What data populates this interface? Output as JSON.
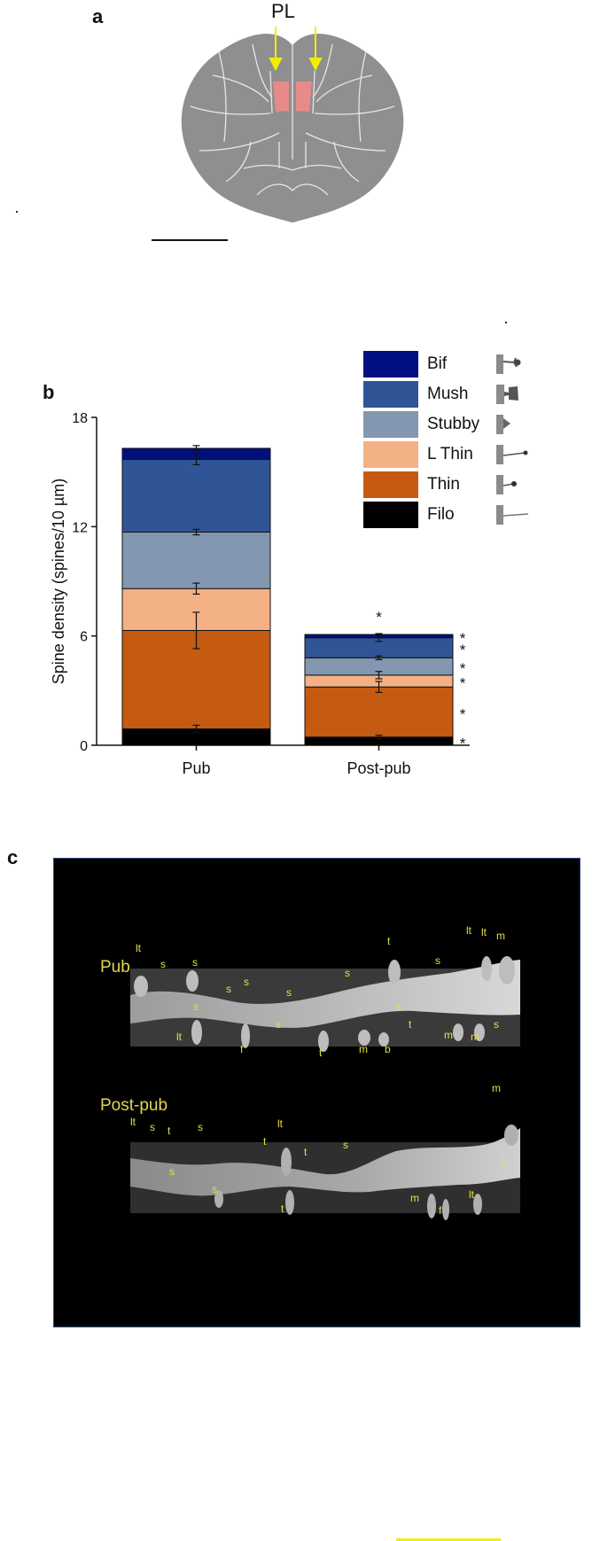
{
  "panel_a": {
    "letter": "a",
    "region_label": "PL"
  },
  "panel_b": {
    "letter": "b"
  },
  "chart_data": {
    "type": "bar",
    "stacked": true,
    "title": "",
    "xlabel": "",
    "ylabel": "Spine density (spines/10 µm)",
    "ylim": [
      0,
      18
    ],
    "yticks": [
      "0",
      "6",
      "12",
      "18"
    ],
    "categories": [
      "Pub",
      "Post-pub"
    ],
    "series": [
      {
        "name": "Filo",
        "color": "#000000",
        "values": [
          0.9,
          0.45
        ],
        "errors": [
          0.2,
          0.1
        ]
      },
      {
        "name": "Thin",
        "color": "#c55a11",
        "values": [
          5.4,
          2.75
        ],
        "errors": [
          1.0,
          0.3
        ]
      },
      {
        "name": "L Thin",
        "color": "#f4b183",
        "values": [
          2.3,
          0.65
        ],
        "errors": [
          0.3,
          0.2
        ]
      },
      {
        "name": "Stubby",
        "color": "#8497b0",
        "values": [
          3.1,
          0.95
        ],
        "errors": [
          0.15,
          0.1
        ]
      },
      {
        "name": "Mush",
        "color": "#2f5597",
        "values": [
          4.0,
          1.1
        ],
        "errors": [
          0.3,
          0.2
        ]
      },
      {
        "name": "Bif",
        "color": "#001080",
        "values": [
          0.6,
          0.18
        ],
        "errors": [
          0.15,
          0.05
        ]
      }
    ],
    "legend": [
      "Bif",
      "Mush",
      "Stubby",
      "L Thin",
      "Thin",
      "Filo"
    ],
    "significance_marker": "*"
  },
  "panel_c": {
    "letter": "c",
    "pub_label": "Pub",
    "postpub_label": "Post-pub",
    "pub_spines": [
      "lt",
      "s",
      "s",
      "s",
      "s",
      "s",
      "s",
      "t",
      "s",
      "lt",
      "lt",
      "m",
      "s",
      "s",
      "t",
      "lt",
      "f",
      "s",
      "t",
      "m",
      "b",
      "m",
      "m",
      "s"
    ],
    "postpub_spines": [
      "lt",
      "s",
      "t",
      "s",
      "s",
      "t",
      "lt",
      "t",
      "s",
      "s",
      "m",
      "t",
      "m",
      "f",
      "lt"
    ]
  }
}
